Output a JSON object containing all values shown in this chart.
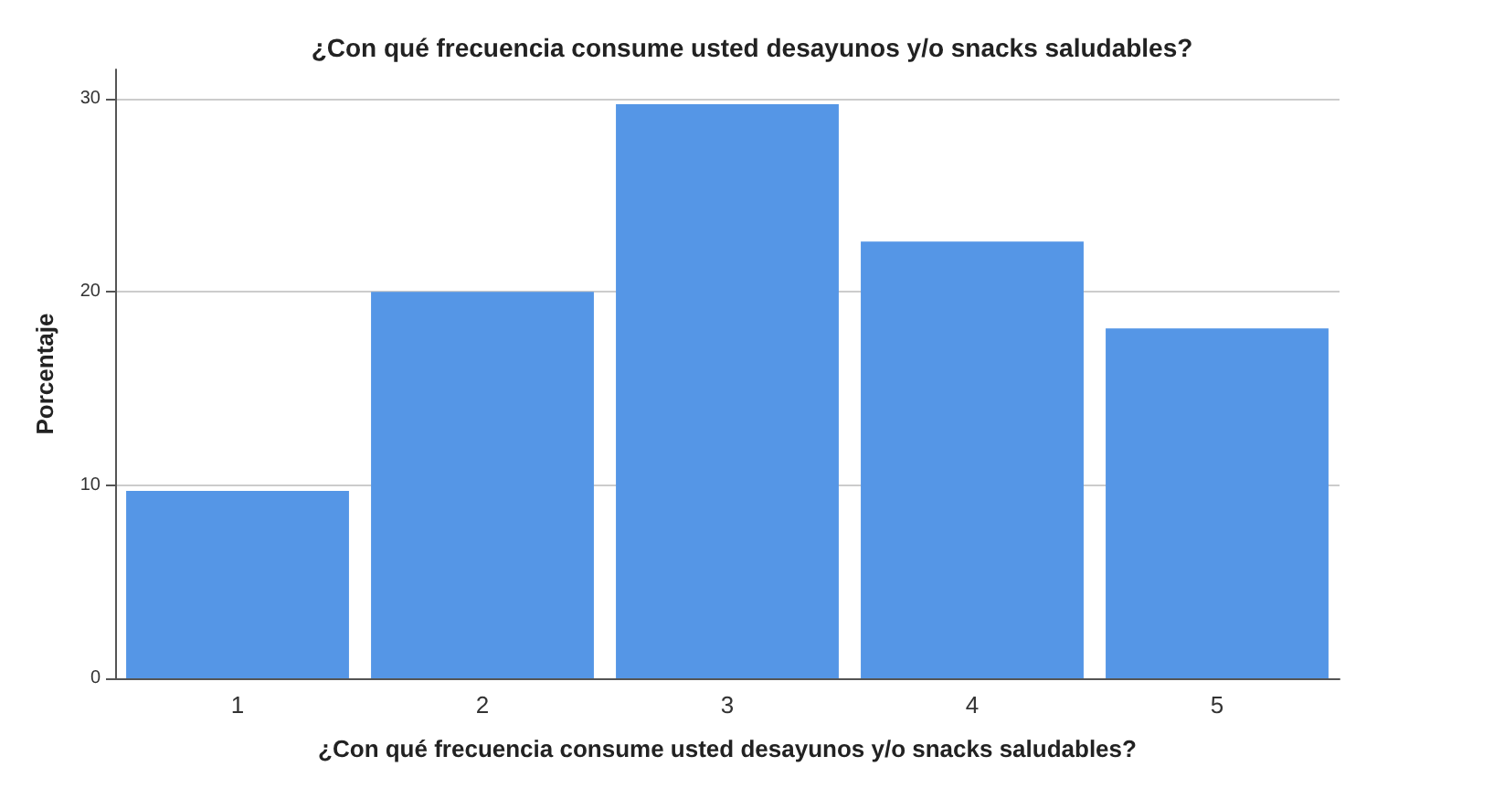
{
  "chart_data": {
    "type": "bar",
    "title": "¿Con qué frecuencia consume usted desayunos y/o snacks saludables?",
    "xlabel": "¿Con qué frecuencia consume usted desayunos y/o snacks saludables?",
    "ylabel": "Porcentaje",
    "categories": [
      "1",
      "2",
      "3",
      "4",
      "5"
    ],
    "values": [
      9.7,
      20.0,
      29.7,
      22.6,
      18.1
    ],
    "color": "#5596e6",
    "ylim": [
      0,
      31.5
    ],
    "yticks": [
      0,
      10,
      20,
      30
    ],
    "grid": "y"
  }
}
